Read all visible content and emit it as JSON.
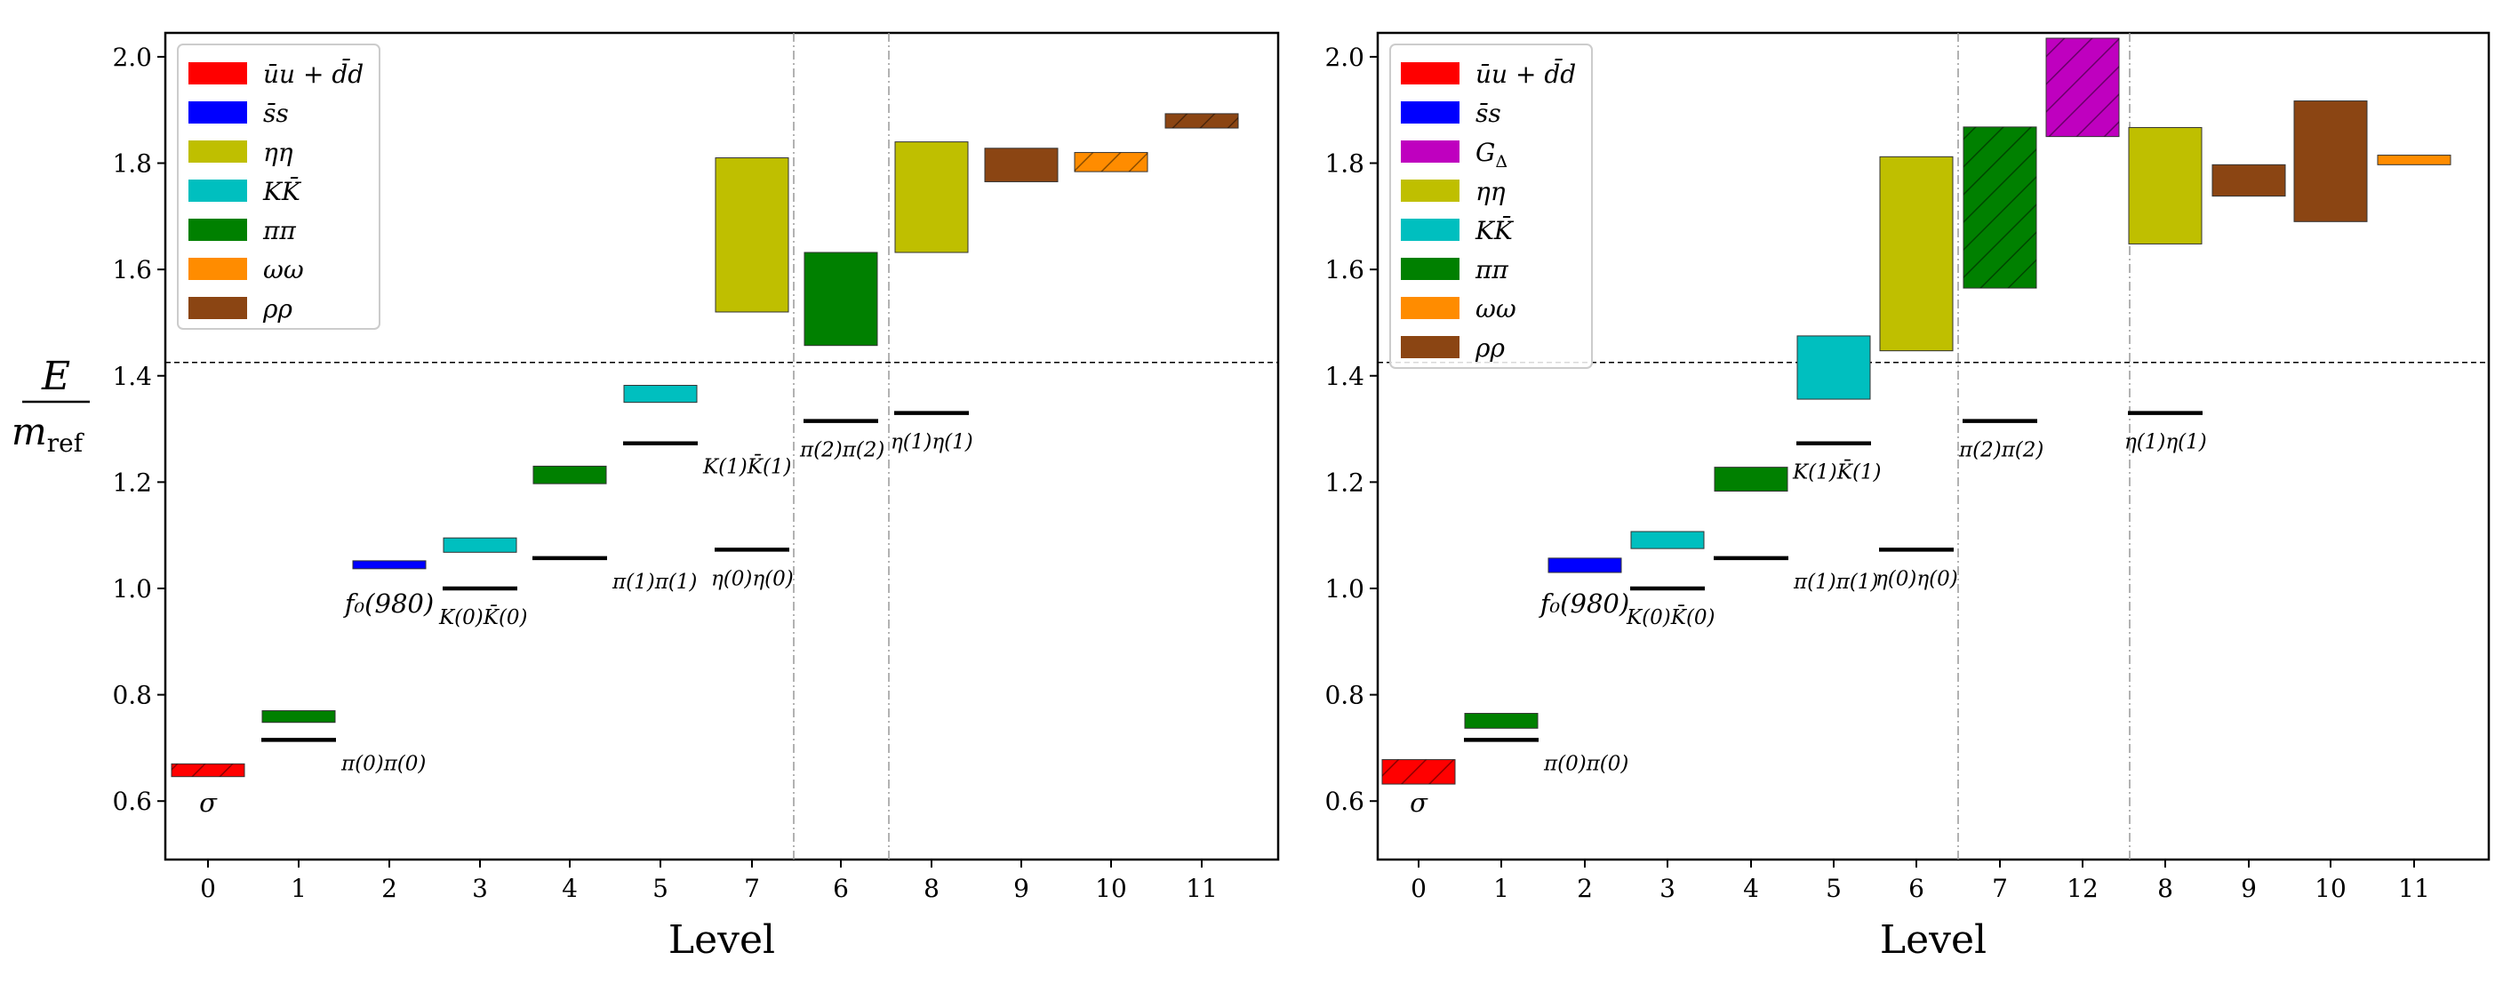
{
  "y_axis_label": {
    "numerator": "E",
    "denominator": "m",
    "denominator_sub": "ref"
  },
  "chart_data": [
    {
      "type": "bar",
      "xlabel": "Level",
      "ylim": [
        0.49,
        2.045
      ],
      "yticks": [
        "0.6",
        "0.8",
        "1.0",
        "1.2",
        "1.4",
        "1.6",
        "1.8",
        "2.0"
      ],
      "threshold": 1.425,
      "level_order": [
        "0",
        "1",
        "2",
        "3",
        "4",
        "5",
        "7",
        "6",
        "8",
        "9",
        "10",
        "11"
      ],
      "vlines_after_index": [
        6,
        7
      ],
      "legend": [
        {
          "label": "ūu + d̄d",
          "color": "#ff0000"
        },
        {
          "label": "s̄s",
          "color": "#0000ff"
        },
        {
          "label": "ηη",
          "color": "#bfbf00"
        },
        {
          "label": "KK̄",
          "color": "#00bfbf"
        },
        {
          "label": "ππ",
          "color": "#008000"
        },
        {
          "label": "ωω",
          "color": "#ff8c00"
        },
        {
          "label": "ρρ",
          "color": "#8b4513"
        }
      ],
      "boxes": [
        {
          "pos": 0,
          "low": 0.646,
          "high": 0.67,
          "color": "#ff0000",
          "hatch": true
        },
        {
          "pos": 1,
          "low": 0.748,
          "high": 0.77,
          "color": "#008000",
          "hatch": false
        },
        {
          "pos": 2,
          "low": 1.037,
          "high": 1.052,
          "color": "#0000ff",
          "hatch": false
        },
        {
          "pos": 3,
          "low": 1.068,
          "high": 1.095,
          "color": "#00bfbf",
          "hatch": false
        },
        {
          "pos": 4,
          "low": 1.197,
          "high": 1.23,
          "color": "#008000",
          "hatch": false
        },
        {
          "pos": 5,
          "low": 1.35,
          "high": 1.382,
          "color": "#00bfbf",
          "hatch": false
        },
        {
          "pos": 6,
          "low": 1.52,
          "high": 1.81,
          "color": "#bfbf00",
          "hatch": false
        },
        {
          "pos": 7,
          "low": 1.457,
          "high": 1.632,
          "color": "#008000",
          "hatch": false
        },
        {
          "pos": 8,
          "low": 1.632,
          "high": 1.84,
          "color": "#bfbf00",
          "hatch": false
        },
        {
          "pos": 9,
          "low": 1.765,
          "high": 1.828,
          "color": "#8b4513",
          "hatch": false
        },
        {
          "pos": 10,
          "low": 1.784,
          "high": 1.82,
          "color": "#ff8c00",
          "hatch": true
        },
        {
          "pos": 11,
          "low": 1.866,
          "high": 1.893,
          "color": "#8b4513",
          "hatch": true
        }
      ],
      "operators": [
        {
          "pos": 1,
          "y": 0.715,
          "label": "π(0)π(0)",
          "anchor": "right"
        },
        {
          "pos": 3,
          "y": 1.0,
          "label": "K(0)K̄(0)",
          "anchor": "below"
        },
        {
          "pos": 4,
          "y": 1.057,
          "label": "π(1)π(1)",
          "anchor": "right"
        },
        {
          "pos": 5,
          "y": 1.273,
          "label": "K(1)K̄(1)",
          "anchor": "right"
        },
        {
          "pos": 6,
          "y": 1.073,
          "label": "η(0)η(0)",
          "anchor": "below"
        },
        {
          "pos": 7,
          "y": 1.315,
          "label": "π(2)π(2)",
          "anchor": "below"
        },
        {
          "pos": 8,
          "y": 1.33,
          "label": "η(1)η(1)",
          "anchor": "below"
        }
      ],
      "state_labels": [
        {
          "pos": 0,
          "y": 0.6,
          "label": "σ"
        },
        {
          "pos": 2,
          "y": 0.975,
          "label": "f₀(980)"
        }
      ]
    },
    {
      "type": "bar",
      "xlabel": "Level",
      "ylim": [
        0.49,
        2.045
      ],
      "yticks": [
        "0.6",
        "0.8",
        "1.0",
        "1.2",
        "1.4",
        "1.6",
        "1.8",
        "2.0"
      ],
      "threshold": 1.425,
      "level_order": [
        "0",
        "1",
        "2",
        "3",
        "4",
        "5",
        "6",
        "7",
        "12",
        "8",
        "9",
        "10",
        "11"
      ],
      "vlines_after_index": [
        6,
        8
      ],
      "legend": [
        {
          "label": "ūu + d̄d",
          "color": "#ff0000"
        },
        {
          "label": "s̄s",
          "color": "#0000ff"
        },
        {
          "label": "G_Δ",
          "color": "#bf00bf"
        },
        {
          "label": "ηη",
          "color": "#bfbf00"
        },
        {
          "label": "KK̄",
          "color": "#00bfbf"
        },
        {
          "label": "ππ",
          "color": "#008000"
        },
        {
          "label": "ωω",
          "color": "#ff8c00"
        },
        {
          "label": "ρρ",
          "color": "#8b4513"
        }
      ],
      "boxes": [
        {
          "pos": 0,
          "low": 0.632,
          "high": 0.678,
          "color": "#ff0000",
          "hatch": true
        },
        {
          "pos": 1,
          "low": 0.737,
          "high": 0.765,
          "color": "#008000",
          "hatch": false
        },
        {
          "pos": 2,
          "low": 1.03,
          "high": 1.057,
          "color": "#0000ff",
          "hatch": false
        },
        {
          "pos": 3,
          "low": 1.075,
          "high": 1.107,
          "color": "#00bfbf",
          "hatch": false
        },
        {
          "pos": 4,
          "low": 1.183,
          "high": 1.228,
          "color": "#008000",
          "hatch": false
        },
        {
          "pos": 5,
          "low": 1.356,
          "high": 1.475,
          "color": "#00bfbf",
          "hatch": false
        },
        {
          "pos": 6,
          "low": 1.447,
          "high": 1.812,
          "color": "#bfbf00",
          "hatch": false
        },
        {
          "pos": 7,
          "low": 1.565,
          "high": 1.868,
          "color": "#008000",
          "hatch": true
        },
        {
          "pos": 8,
          "low": 1.85,
          "high": 2.035,
          "color": "#bf00bf",
          "hatch": true
        },
        {
          "pos": 9,
          "low": 1.648,
          "high": 1.867,
          "color": "#bfbf00",
          "hatch": false
        },
        {
          "pos": 10,
          "low": 1.738,
          "high": 1.797,
          "color": "#8b4513",
          "hatch": false
        },
        {
          "pos": 11,
          "low": 1.69,
          "high": 1.917,
          "color": "#8b4513",
          "hatch": false
        },
        {
          "pos": 12,
          "low": 1.797,
          "high": 1.815,
          "color": "#ff8c00",
          "hatch": false
        }
      ],
      "operators": [
        {
          "pos": 1,
          "y": 0.715,
          "label": "π(0)π(0)",
          "anchor": "right"
        },
        {
          "pos": 3,
          "y": 1.0,
          "label": "K(0)K̄(0)",
          "anchor": "below"
        },
        {
          "pos": 4,
          "y": 1.057,
          "label": "π(1)π(1)",
          "anchor": "right"
        },
        {
          "pos": 5,
          "y": 1.273,
          "label": "K(1)K̄(1)",
          "anchor": "below"
        },
        {
          "pos": 6,
          "y": 1.073,
          "label": "η(0)η(0)",
          "anchor": "below"
        },
        {
          "pos": 7,
          "y": 1.315,
          "label": "π(2)π(2)",
          "anchor": "below"
        },
        {
          "pos": 9,
          "y": 1.33,
          "label": "η(1)η(1)",
          "anchor": "below"
        }
      ],
      "state_labels": [
        {
          "pos": 0,
          "y": 0.6,
          "label": "σ"
        },
        {
          "pos": 2,
          "y": 0.975,
          "label": "f₀(980)"
        }
      ]
    }
  ]
}
